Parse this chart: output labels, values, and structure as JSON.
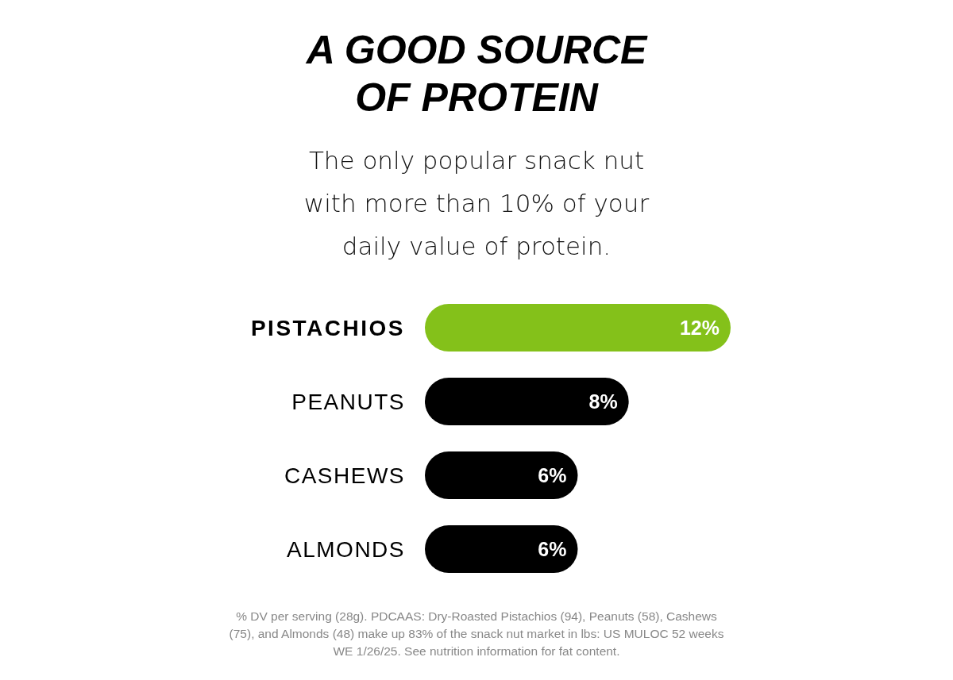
{
  "chart_data": {
    "type": "bar",
    "orientation": "horizontal",
    "title": "A GOOD SOURCE OF PROTEIN",
    "subtitle": "The only popular snack nut with more than 10% of your daily value of protein.",
    "categories": [
      "PISTACHIOS",
      "PEANUTS",
      "CASHEWS",
      "ALMONDS"
    ],
    "values": [
      12,
      8,
      6,
      6
    ],
    "colors": [
      "#84c11a",
      "#000000",
      "#000000",
      "#000000"
    ],
    "value_labels": [
      "12%",
      "8%",
      "6%",
      "6%"
    ],
    "annotations": [
      "% DV per serving (28g). PDCAAS: Dry-Roasted Pistachios (94), Peanuts (58), Cashews (75), and Almonds (48) make up 83% of the snack nut market in lbs: US MULOC 52 weeks WE 1/26/25. See nutrition information for fat content."
    ]
  }
}
